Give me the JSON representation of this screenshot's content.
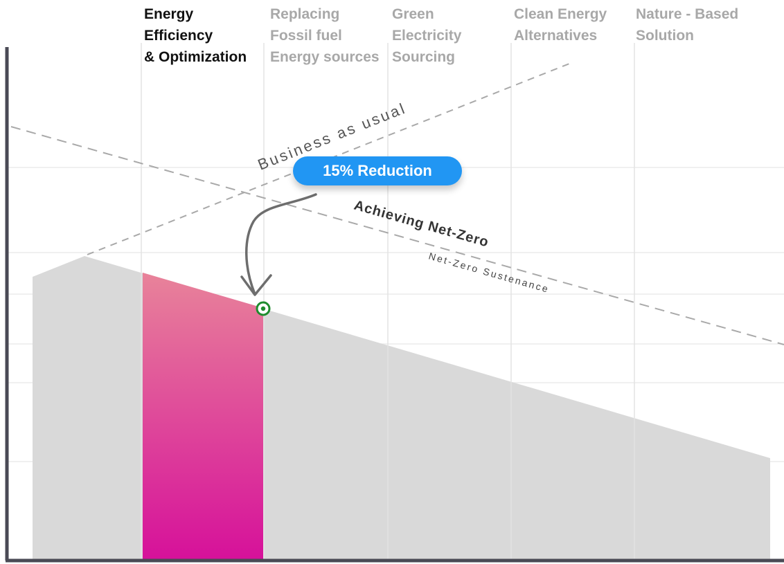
{
  "phases": [
    {
      "lines": [
        "Energy",
        "Efficiency",
        "& Optimization"
      ],
      "active": true
    },
    {
      "lines": [
        "Replacing",
        "Fossil fuel",
        "Energy sources"
      ],
      "active": false
    },
    {
      "lines": [
        "Green",
        "Electricity",
        "Sourcing"
      ],
      "active": false
    },
    {
      "lines": [
        "Clean Energy",
        "Alternatives"
      ],
      "active": false
    },
    {
      "lines": [
        "Nature - Based",
        "Solution"
      ],
      "active": false
    }
  ],
  "labels": {
    "business_as_usual": "Business as usual",
    "achieving_net_zero": "Achieving Net-Zero",
    "net_zero_sustenance": "Net-Zero Sustenance"
  },
  "callout": {
    "text": "15% Reduction"
  },
  "colors": {
    "active_phase_top": "#e8839a",
    "active_phase_bottom": "#d6119a",
    "emissions_area": "#d9d9d9",
    "badge": "#2196f3",
    "marker": "#1e8c2e",
    "axis": "#4a4a55"
  }
}
